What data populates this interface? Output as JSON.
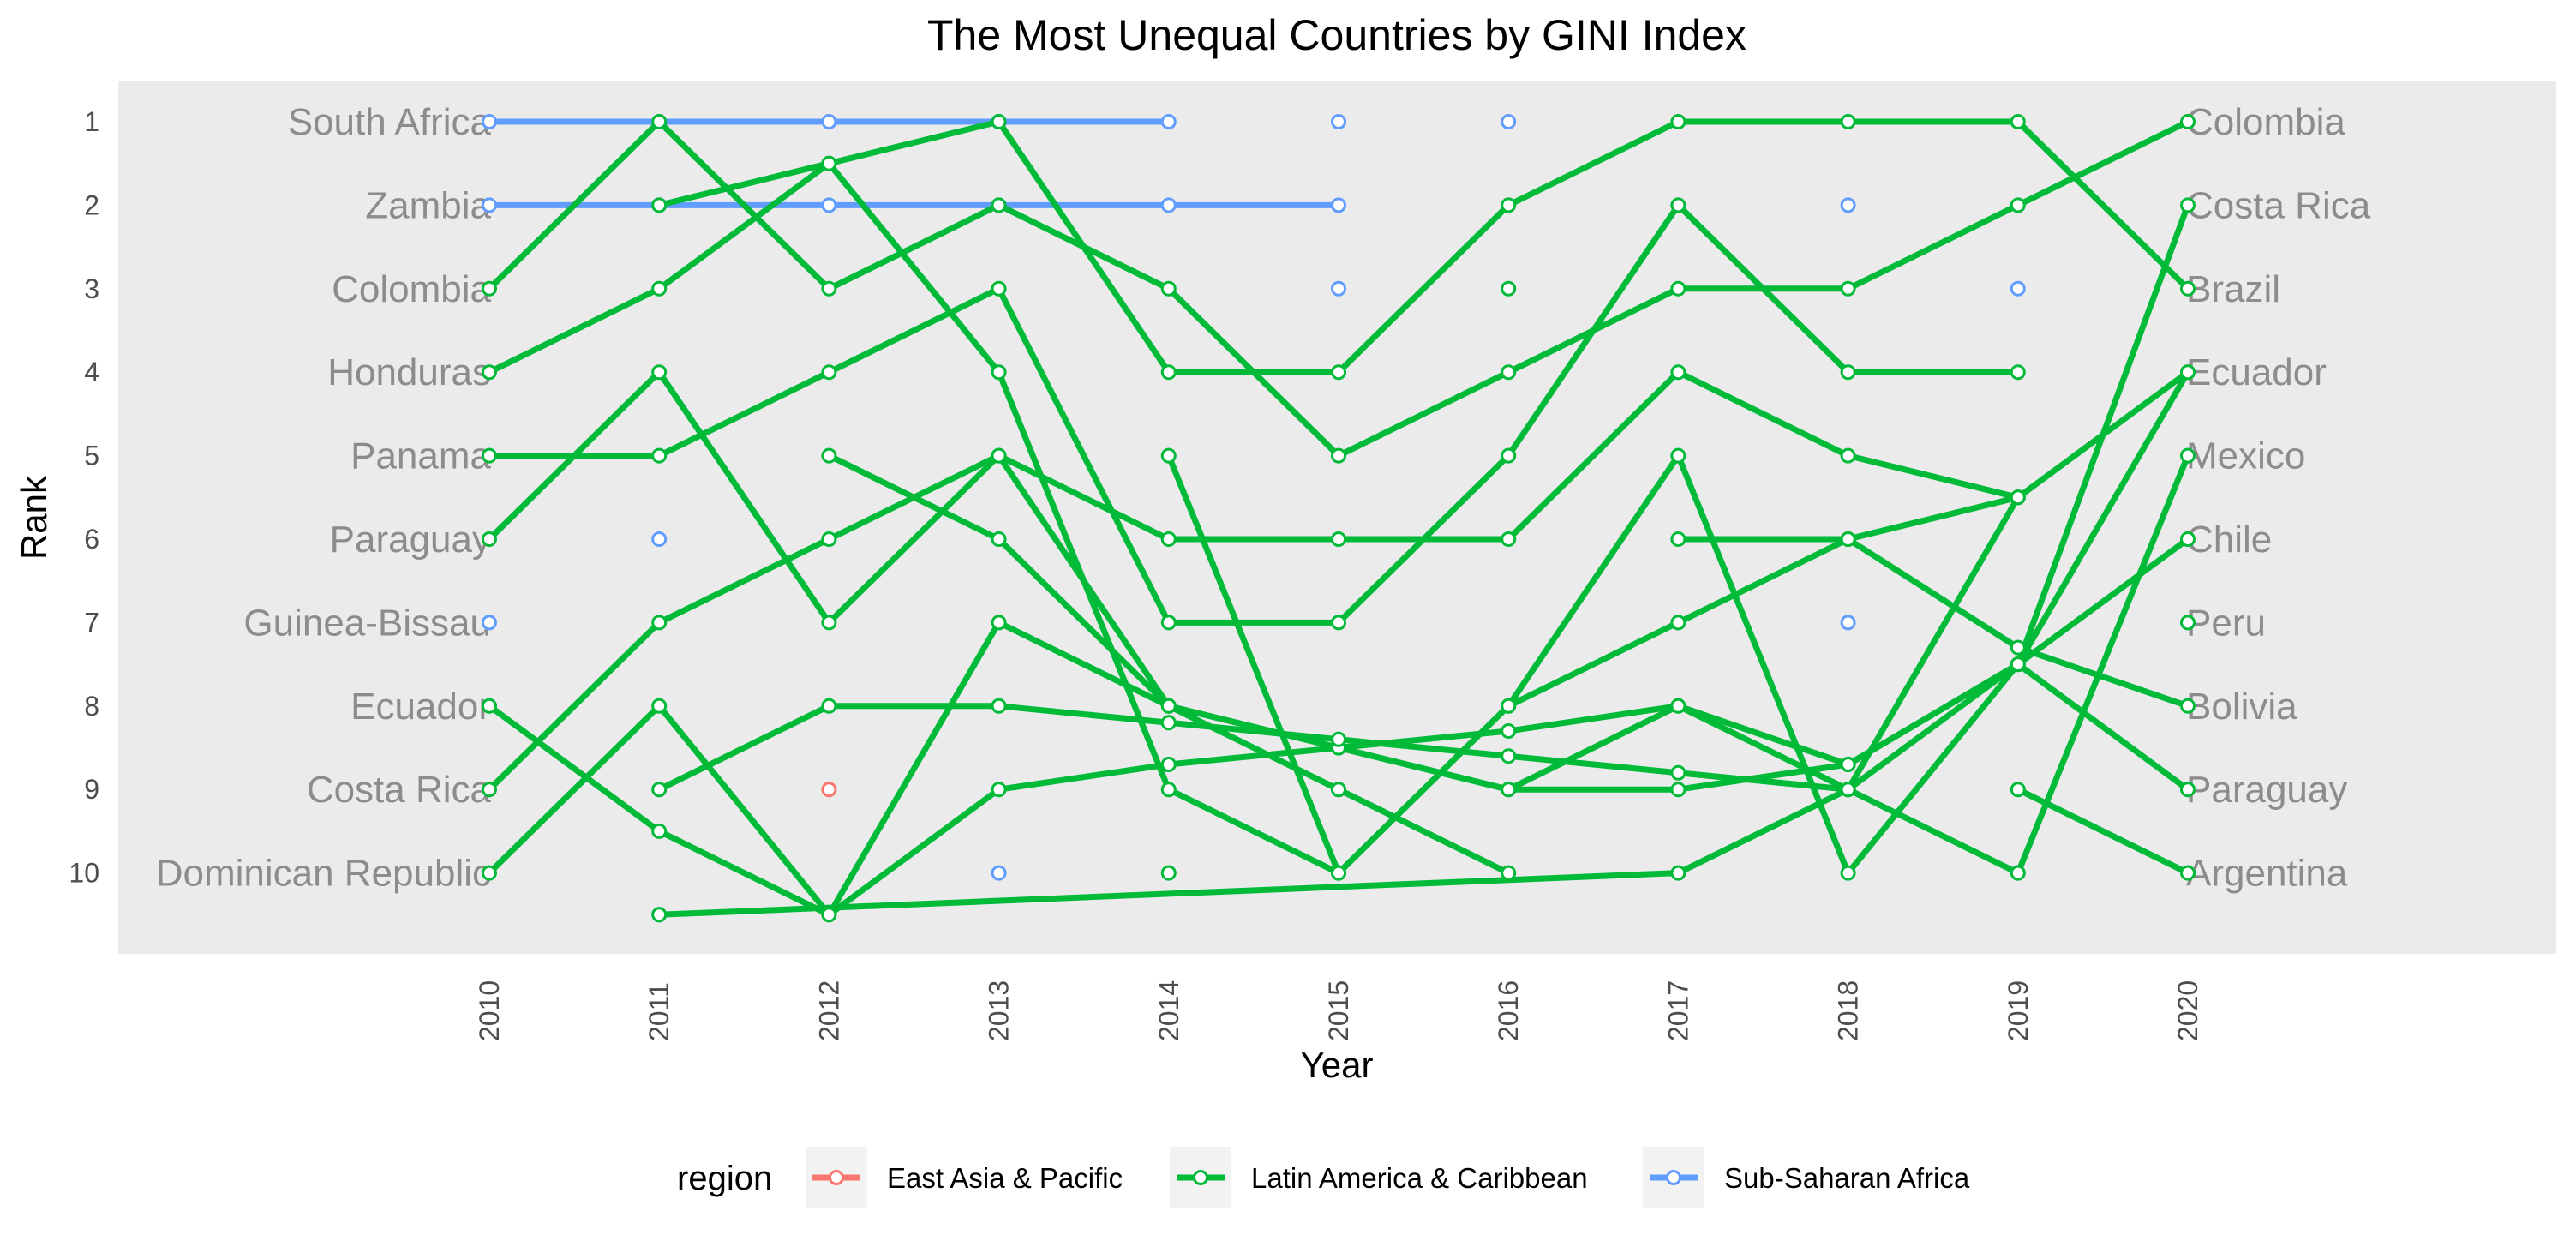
{
  "chart_data": {
    "type": "line",
    "title": "The Most Unequal Countries by GINI Index",
    "xlabel": "Year",
    "ylabel": "Rank",
    "x": [
      2010,
      2011,
      2012,
      2013,
      2014,
      2015,
      2016,
      2017,
      2018,
      2019,
      2020
    ],
    "y_ticks": [
      1,
      2,
      3,
      4,
      5,
      6,
      7,
      8,
      9,
      10
    ],
    "ylim": [
      10.9,
      0.5
    ],
    "grid": false,
    "legend": {
      "title": "region",
      "position": "bottom",
      "entries": [
        {
          "label": "East Asia & Pacific",
          "color": "#F8766D"
        },
        {
          "label": "Latin America & Caribbean",
          "color": "#00BA38"
        },
        {
          "label": "Sub-Saharan Africa",
          "color": "#619CFF"
        }
      ]
    },
    "left_labels": [
      {
        "rank": 1,
        "text": "South Africa"
      },
      {
        "rank": 2,
        "text": "Zambia"
      },
      {
        "rank": 3,
        "text": "Colombia"
      },
      {
        "rank": 4,
        "text": "Honduras"
      },
      {
        "rank": 5,
        "text": "Panama"
      },
      {
        "rank": 6,
        "text": "Paraguay"
      },
      {
        "rank": 7,
        "text": "Guinea-Bissau"
      },
      {
        "rank": 8,
        "text": "Ecuador"
      },
      {
        "rank": 9,
        "text": "Costa Rica"
      },
      {
        "rank": 10,
        "text": "Dominican Republic"
      }
    ],
    "right_labels": [
      {
        "rank": 1,
        "text": "Colombia"
      },
      {
        "rank": 2,
        "text": "Costa Rica"
      },
      {
        "rank": 3,
        "text": "Brazil"
      },
      {
        "rank": 4,
        "text": "Ecuador"
      },
      {
        "rank": 5,
        "text": "Mexico"
      },
      {
        "rank": 6,
        "text": "Chile"
      },
      {
        "rank": 7,
        "text": "Peru"
      },
      {
        "rank": 8,
        "text": "Bolivia"
      },
      {
        "rank": 9,
        "text": "Paraguay"
      },
      {
        "rank": 10,
        "text": "Argentina"
      }
    ],
    "series": [
      {
        "region": "Sub-Saharan Africa",
        "points": [
          [
            2010,
            1
          ],
          [
            2011,
            1
          ],
          [
            2012,
            1
          ],
          [
            2013,
            1
          ],
          [
            2014,
            1
          ]
        ]
      },
      {
        "region": "Sub-Saharan Africa",
        "points": [
          [
            2010,
            2
          ],
          [
            2011,
            2
          ],
          [
            2012,
            2
          ],
          [
            2013,
            2
          ],
          [
            2014,
            2
          ],
          [
            2015,
            2
          ]
        ]
      },
      {
        "region": "Sub-Saharan Africa",
        "points": [
          [
            2015,
            1
          ]
        ]
      },
      {
        "region": "Sub-Saharan Africa",
        "points": [
          [
            2016,
            1
          ]
        ]
      },
      {
        "region": "Sub-Saharan Africa",
        "points": [
          [
            2015,
            3
          ]
        ]
      },
      {
        "region": "Sub-Saharan Africa",
        "points": [
          [
            2018,
            2
          ]
        ]
      },
      {
        "region": "Sub-Saharan Africa",
        "points": [
          [
            2019,
            3
          ]
        ]
      },
      {
        "region": "Sub-Saharan Africa",
        "points": [
          [
            2011,
            6
          ]
        ]
      },
      {
        "region": "Sub-Saharan Africa",
        "points": [
          [
            2010,
            7
          ]
        ]
      },
      {
        "region": "Sub-Saharan Africa",
        "points": [
          [
            2017,
            7
          ]
        ]
      },
      {
        "region": "Sub-Saharan Africa",
        "points": [
          [
            2018,
            7
          ]
        ]
      },
      {
        "region": "Sub-Saharan Africa",
        "points": [
          [
            2015,
            9
          ]
        ]
      },
      {
        "region": "Sub-Saharan Africa",
        "points": [
          [
            2013,
            10
          ]
        ]
      },
      {
        "region": "Sub-Saharan Africa",
        "points": [
          [
            2019,
            10
          ]
        ]
      },
      {
        "region": "Sub-Saharan Africa",
        "points": [
          [
            2011,
            10.5
          ]
        ]
      },
      {
        "region": "East Asia & Pacific",
        "points": [
          [
            2012,
            9
          ]
        ]
      },
      {
        "region": "Latin America & Caribbean",
        "points": [
          [
            2010,
            3
          ],
          [
            2011,
            1
          ],
          [
            2012,
            3
          ],
          [
            2013,
            2
          ],
          [
            2014,
            3
          ],
          [
            2015,
            5
          ],
          [
            2016,
            4
          ],
          [
            2017,
            3
          ],
          [
            2018,
            3
          ],
          [
            2019,
            2
          ],
          [
            2020,
            1
          ]
        ]
      },
      {
        "region": "Latin America & Caribbean",
        "points": [
          [
            2011,
            2
          ],
          [
            2012,
            1.5
          ],
          [
            2013,
            1
          ],
          [
            2014,
            4
          ],
          [
            2015,
            4
          ],
          [
            2016,
            2
          ],
          [
            2017,
            1
          ],
          [
            2018,
            1
          ],
          [
            2019,
            1
          ],
          [
            2020,
            3
          ]
        ]
      },
      {
        "region": "Latin America & Caribbean",
        "points": [
          [
            2010,
            4
          ],
          [
            2011,
            3
          ],
          [
            2012,
            1.5
          ],
          [
            2013,
            4
          ],
          [
            2014,
            9
          ],
          [
            2015,
            10
          ],
          [
            2016,
            8
          ],
          [
            2017,
            5
          ],
          [
            2018,
            10
          ],
          [
            2019,
            7.5
          ],
          [
            2020,
            2
          ]
        ]
      },
      {
        "region": "Latin America & Caribbean",
        "points": [
          [
            2010,
            5
          ],
          [
            2011,
            5
          ],
          [
            2012,
            4
          ],
          [
            2013,
            3
          ],
          [
            2014,
            7
          ],
          [
            2015,
            7
          ],
          [
            2016,
            5
          ],
          [
            2017,
            2
          ],
          [
            2018,
            4
          ],
          [
            2019,
            4
          ]
        ]
      },
      {
        "region": "Latin America & Caribbean",
        "points": [
          [
            2010,
            6
          ],
          [
            2011,
            4
          ],
          [
            2012,
            7
          ],
          [
            2013,
            5
          ],
          [
            2014,
            6
          ],
          [
            2015,
            6
          ],
          [
            2016,
            6
          ],
          [
            2017,
            4
          ],
          [
            2018,
            5
          ],
          [
            2019,
            5.5
          ],
          [
            2020,
            4
          ]
        ]
      },
      {
        "region": "Latin America & Caribbean",
        "points": [
          [
            2012,
            5
          ],
          [
            2013,
            6
          ],
          [
            2014,
            8
          ],
          [
            2015,
            9
          ],
          [
            2016,
            10
          ]
        ]
      },
      {
        "region": "Latin America & Caribbean",
        "points": [
          [
            2010,
            9
          ],
          [
            2011,
            7
          ],
          [
            2012,
            6
          ],
          [
            2013,
            5
          ],
          [
            2014,
            8
          ],
          [
            2015,
            8.5
          ],
          [
            2016,
            9
          ],
          [
            2017,
            8
          ],
          [
            2018,
            9
          ],
          [
            2019,
            5.5
          ]
        ]
      },
      {
        "region": "Latin America & Caribbean",
        "points": [
          [
            2010,
            8
          ],
          [
            2011,
            9.5
          ],
          [
            2012,
            10.5
          ],
          [
            2013,
            7
          ],
          [
            2014,
            8
          ],
          [
            2015,
            8.5
          ],
          [
            2016,
            9
          ],
          [
            2017,
            9
          ],
          [
            2018,
            8.7
          ],
          [
            2019,
            7.5
          ],
          [
            2020,
            6
          ]
        ]
      },
      {
        "region": "Latin America & Caribbean",
        "points": [
          [
            2010,
            10
          ],
          [
            2011,
            8
          ],
          [
            2012,
            10.5
          ],
          [
            2013,
            9
          ],
          [
            2014,
            8.7
          ],
          [
            2015,
            8.5
          ],
          [
            2016,
            8.3
          ],
          [
            2017,
            8
          ],
          [
            2018,
            8.7
          ],
          [
            2019,
            7.5
          ],
          [
            2020,
            9
          ]
        ]
      },
      {
        "region": "Latin America & Caribbean",
        "points": [
          [
            2011,
            9
          ],
          [
            2012,
            8
          ],
          [
            2013,
            8
          ],
          [
            2014,
            8.2
          ],
          [
            2015,
            8.4
          ],
          [
            2016,
            8.6
          ],
          [
            2017,
            8.8
          ],
          [
            2018,
            9
          ],
          [
            2019,
            10
          ],
          [
            2020,
            5
          ]
        ]
      },
      {
        "region": "Latin America & Caribbean",
        "points": [
          [
            2014,
            5
          ],
          [
            2015,
            10
          ],
          [
            2016,
            8
          ],
          [
            2017,
            7
          ],
          [
            2018,
            6
          ],
          [
            2019,
            7.3
          ],
          [
            2020,
            8
          ]
        ]
      },
      {
        "region": "Latin America & Caribbean",
        "points": [
          [
            2011,
            10.5
          ],
          [
            2017,
            10
          ],
          [
            2018,
            9
          ],
          [
            2019,
            7.5
          ],
          [
            2020,
            4
          ]
        ]
      },
      {
        "region": "Latin America & Caribbean",
        "points": [
          [
            2017,
            6
          ],
          [
            2018,
            6
          ],
          [
            2019,
            5.5
          ]
        ]
      },
      {
        "region": "Latin America & Caribbean",
        "points": [
          [
            2019,
            9
          ],
          [
            2020,
            10
          ]
        ]
      },
      {
        "region": "Latin America & Caribbean",
        "points": [
          [
            2016,
            3
          ]
        ]
      },
      {
        "region": "Latin America & Caribbean",
        "points": [
          [
            2014,
            10
          ]
        ]
      },
      {
        "region": "Latin America & Caribbean",
        "points": [
          [
            2020,
            7
          ]
        ]
      }
    ]
  }
}
